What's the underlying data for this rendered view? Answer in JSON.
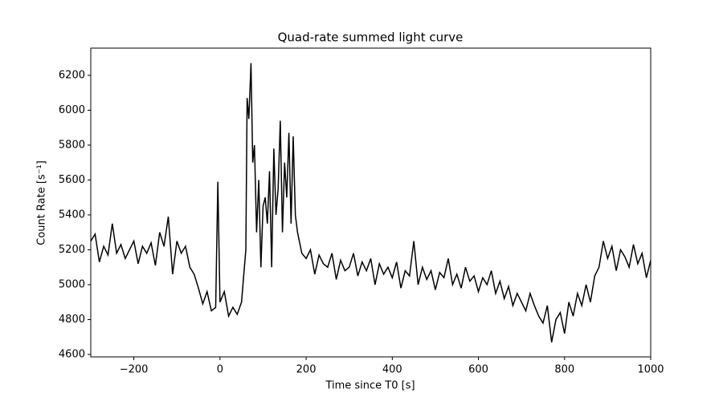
{
  "chart_data": {
    "type": "line",
    "title": "Quad-rate summed light curve",
    "xlabel": "Time since T0 [s]",
    "ylabel": "Count Rate [s⁻¹]",
    "x": [
      -300,
      -290,
      -280,
      -270,
      -260,
      -250,
      -240,
      -230,
      -220,
      -210,
      -200,
      -190,
      -180,
      -170,
      -160,
      -150,
      -140,
      -130,
      -120,
      -110,
      -100,
      -90,
      -80,
      -70,
      -60,
      -50,
      -40,
      -30,
      -20,
      -10,
      -5,
      0,
      10,
      20,
      30,
      40,
      50,
      55,
      60,
      63,
      67,
      72,
      76,
      80,
      85,
      90,
      95,
      100,
      105,
      110,
      115,
      120,
      125,
      130,
      135,
      140,
      145,
      150,
      155,
      160,
      165,
      170,
      175,
      180,
      190,
      200,
      210,
      220,
      230,
      240,
      250,
      260,
      270,
      280,
      290,
      300,
      310,
      320,
      330,
      340,
      350,
      360,
      370,
      380,
      390,
      400,
      410,
      420,
      430,
      440,
      450,
      460,
      470,
      480,
      490,
      500,
      510,
      520,
      530,
      540,
      550,
      560,
      570,
      580,
      590,
      600,
      610,
      620,
      630,
      640,
      650,
      660,
      670,
      680,
      690,
      700,
      710,
      720,
      730,
      740,
      750,
      760,
      770,
      780,
      790,
      800,
      810,
      820,
      830,
      840,
      850,
      860,
      870,
      880,
      890,
      900,
      910,
      920,
      930,
      940,
      950,
      960,
      970,
      980,
      990,
      1000
    ],
    "series": [
      {
        "name": "light curve",
        "color": "#000000",
        "values": [
          5250,
          5290,
          5130,
          5220,
          5170,
          5350,
          5180,
          5230,
          5150,
          5200,
          5250,
          5120,
          5220,
          5180,
          5240,
          5110,
          5300,
          5220,
          5390,
          5060,
          5250,
          5180,
          5220,
          5100,
          5060,
          4980,
          4890,
          4960,
          4850,
          4870,
          5590,
          4900,
          4960,
          4820,
          4870,
          4830,
          4900,
          5050,
          5200,
          6070,
          5950,
          6270,
          5700,
          5800,
          5300,
          5600,
          5100,
          5450,
          5500,
          5350,
          5650,
          5100,
          5780,
          5400,
          5550,
          5940,
          5300,
          5700,
          5500,
          5870,
          5350,
          5850,
          5400,
          5300,
          5180,
          5150,
          5200,
          5060,
          5170,
          5120,
          5100,
          5180,
          5030,
          5140,
          5080,
          5100,
          5180,
          5050,
          5130,
          5080,
          5150,
          5000,
          5120,
          5060,
          5100,
          5040,
          5130,
          4980,
          5080,
          5050,
          5250,
          5000,
          5100,
          5030,
          5080,
          4970,
          5070,
          5040,
          5150,
          5000,
          5060,
          4980,
          5100,
          5020,
          5050,
          4960,
          5040,
          5000,
          5080,
          4950,
          5020,
          4920,
          4990,
          4880,
          4950,
          4900,
          4850,
          4950,
          4880,
          4820,
          4780,
          4880,
          4670,
          4800,
          4840,
          4720,
          4900,
          4820,
          4950,
          4880,
          5000,
          4900,
          5050,
          5100,
          5250,
          5150,
          5220,
          5080,
          5200,
          5160,
          5100,
          5230,
          5120,
          5180,
          5040,
          5140
        ]
      }
    ],
    "xlim": [
      -300,
      1000
    ],
    "ylim": [
      4586,
      6356
    ],
    "xticks": [
      {
        "value": -200,
        "label": "−200"
      },
      0,
      200,
      400,
      600,
      800,
      1000
    ],
    "yticks": [
      4600,
      4800,
      5000,
      5200,
      5400,
      5600,
      5800,
      6000,
      6200
    ]
  }
}
